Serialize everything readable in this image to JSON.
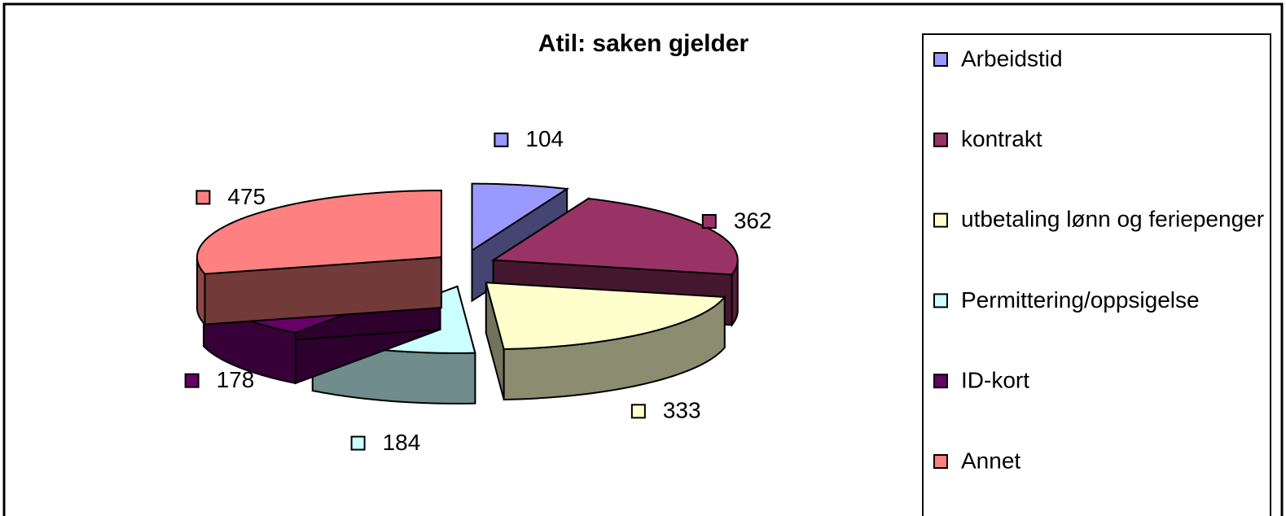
{
  "chart_data": {
    "type": "pie3d",
    "title": "Atil: saken gjelder",
    "categories": [
      "Arbeidstid",
      "kontrakt",
      "utbetaling lønn og feriepenger",
      "Permittering/oppsigelse",
      "ID-kort",
      "Annet"
    ],
    "values": [
      104,
      362,
      333,
      184,
      178,
      475
    ],
    "colors": [
      "#9999ff",
      "#993366",
      "#ffffcc",
      "#ccffff",
      "#660066",
      "#ff8080"
    ],
    "legend": "right"
  }
}
